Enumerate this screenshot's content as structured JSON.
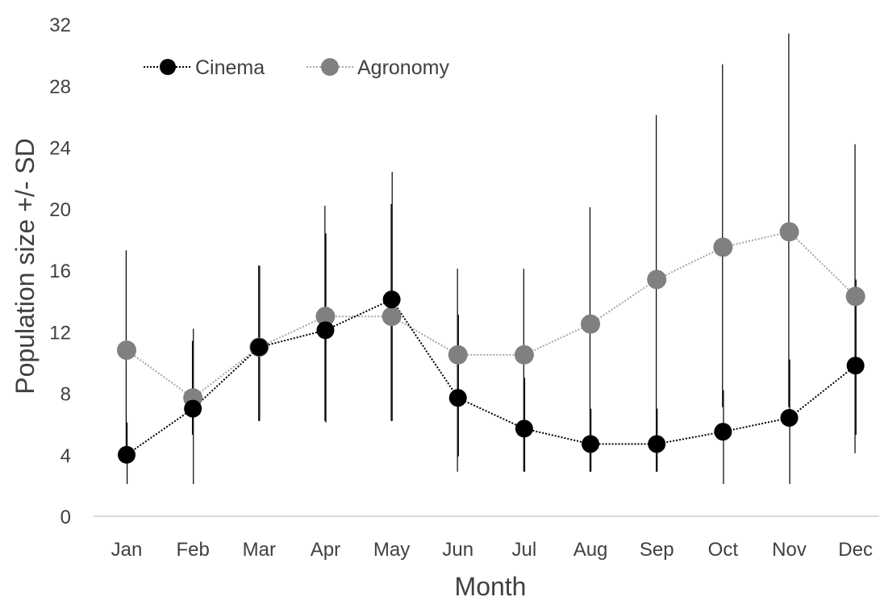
{
  "chart_data": {
    "type": "line",
    "title": "",
    "xlabel": "Month",
    "ylabel": "Population size +/- SD",
    "categories": [
      "Jan",
      "Feb",
      "Mar",
      "Apr",
      "May",
      "Jun",
      "Jul",
      "Aug",
      "Sep",
      "Oct",
      "Nov",
      "Dec"
    ],
    "ylim": [
      0,
      32
    ],
    "yticks": [
      "0",
      "4",
      "8",
      "12",
      "16",
      "20",
      "24",
      "28",
      "32"
    ],
    "grid": false,
    "legend_position": "top-left",
    "series": [
      {
        "name": "Cinema",
        "color": "#000000",
        "values": [
          4.0,
          7.0,
          11.0,
          12.1,
          14.1,
          7.7,
          5.7,
          4.7,
          4.7,
          5.5,
          6.4,
          9.8
        ],
        "error_low": [
          2.1,
          2.1,
          6.2,
          6.1,
          6.2,
          3.9,
          2.9,
          2.9,
          2.9,
          2.1,
          2.1,
          5.3
        ],
        "error_high": [
          6.1,
          12.2,
          16.3,
          18.4,
          22.4,
          13.1,
          9.0,
          7.0,
          7.0,
          8.2,
          10.2,
          15.4
        ]
      },
      {
        "name": "Agronomy",
        "color": "#808080",
        "values": [
          10.8,
          7.7,
          11.0,
          13.0,
          13.0,
          10.5,
          10.5,
          12.5,
          15.4,
          17.5,
          18.5,
          14.3
        ],
        "error_low": [
          4.2,
          5.3,
          6.2,
          6.2,
          6.2,
          2.9,
          2.9,
          2.9,
          2.9,
          7.1,
          7.1,
          4.1
        ],
        "error_high": [
          17.3,
          11.4,
          16.3,
          20.2,
          20.3,
          16.1,
          16.1,
          20.1,
          26.1,
          29.4,
          31.4,
          24.2
        ]
      }
    ]
  }
}
